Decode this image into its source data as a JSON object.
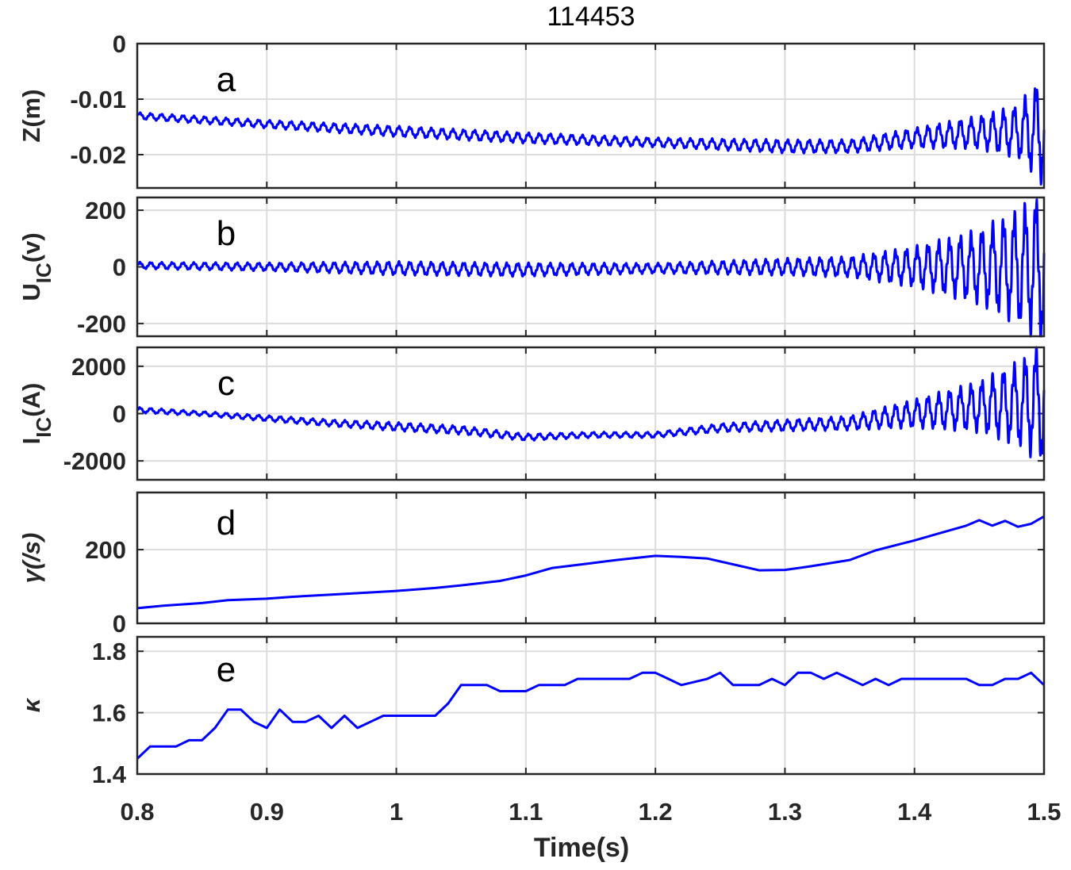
{
  "chart_data": {
    "type": "line",
    "title": "114453",
    "xlabel": "Time(s)",
    "xlim": [
      0.8,
      1.5
    ],
    "xticks": [
      "0.8",
      "0.9",
      "1",
      "1.1",
      "1.2",
      "1.3",
      "1.4",
      "1.5"
    ],
    "xtick_values": [
      0.8,
      0.9,
      1.0,
      1.1,
      1.2,
      1.3,
      1.4,
      1.5
    ],
    "grid": true,
    "line_color": "#0000ff",
    "panels": [
      {
        "letter": "a",
        "ylabel": "Z(m)",
        "ylim": [
          -0.026,
          0
        ],
        "yticks": [
          "0",
          "-0.01",
          "-0.02"
        ],
        "ytick_values": [
          0,
          -0.01,
          -0.02
        ],
        "oscillation_hz": 120,
        "t": [
          0.8,
          0.9,
          1.0,
          1.1,
          1.2,
          1.3,
          1.35,
          1.4,
          1.45,
          1.48,
          1.5
        ],
        "trend": [
          -0.013,
          -0.0145,
          -0.0158,
          -0.017,
          -0.0178,
          -0.0185,
          -0.0185,
          -0.017,
          -0.016,
          -0.0158,
          -0.0155
        ],
        "amplitude": [
          0.0005,
          0.0006,
          0.0008,
          0.0008,
          0.0007,
          0.001,
          0.001,
          0.0015,
          0.0025,
          0.004,
          0.0085
        ]
      },
      {
        "letter": "b",
        "ylabel": "U",
        "ylabel_sub": "IC",
        "ylabel_unit": "(v)",
        "ylim": [
          -245,
          245
        ],
        "yticks": [
          "200",
          "0",
          "-200"
        ],
        "ytick_values": [
          200,
          0,
          -200
        ],
        "oscillation_hz": 120,
        "t": [
          0.8,
          0.9,
          1.0,
          1.1,
          1.2,
          1.3,
          1.35,
          1.4,
          1.45,
          1.48,
          1.5
        ],
        "trend": [
          5,
          0,
          -5,
          -10,
          -5,
          0,
          0,
          0,
          0,
          0,
          0
        ],
        "amplitude": [
          10,
          12,
          20,
          20,
          15,
          25,
          30,
          60,
          110,
          170,
          230
        ]
      },
      {
        "letter": "c",
        "ylabel": "I",
        "ylabel_sub": "IC",
        "ylabel_unit": "(A)",
        "ylim": [
          -2800,
          2800
        ],
        "yticks": [
          "2000",
          "0",
          "-2000"
        ],
        "ytick_values": [
          2000,
          0,
          -2000
        ],
        "oscillation_hz": 120,
        "t": [
          0.8,
          0.85,
          0.9,
          0.95,
          1.0,
          1.05,
          1.1,
          1.15,
          1.2,
          1.25,
          1.3,
          1.35,
          1.4,
          1.45,
          1.48,
          1.5
        ],
        "trend": [
          150,
          0,
          -200,
          -400,
          -550,
          -700,
          -1000,
          -900,
          -900,
          -600,
          -500,
          -400,
          0,
          300,
          400,
          500
        ],
        "amplitude": [
          100,
          80,
          100,
          120,
          150,
          150,
          120,
          100,
          100,
          150,
          200,
          250,
          500,
          900,
          1500,
          2200
        ]
      },
      {
        "letter": "d",
        "ylabel": "γ(/s)",
        "ylim": [
          0,
          355
        ],
        "yticks": [
          "200",
          "0"
        ],
        "ytick_values": [
          200,
          0
        ],
        "t": [
          0.8,
          0.82,
          0.85,
          0.87,
          0.9,
          0.92,
          0.95,
          0.98,
          1.0,
          1.03,
          1.05,
          1.08,
          1.1,
          1.12,
          1.15,
          1.17,
          1.2,
          1.22,
          1.24,
          1.26,
          1.28,
          1.3,
          1.32,
          1.35,
          1.37,
          1.4,
          1.42,
          1.44,
          1.45,
          1.46,
          1.47,
          1.48,
          1.49,
          1.5
        ],
        "values": [
          41,
          48,
          55,
          63,
          67,
          72,
          78,
          84,
          88,
          96,
          103,
          115,
          130,
          150,
          163,
          172,
          183,
          180,
          176,
          160,
          144,
          145,
          155,
          172,
          198,
          225,
          245,
          265,
          280,
          265,
          278,
          262,
          270,
          290
        ]
      },
      {
        "letter": "e",
        "ylabel": "κ",
        "ylim": [
          1.4,
          1.847
        ],
        "yticks": [
          "1.8",
          "1.6",
          "1.4"
        ],
        "ytick_values": [
          1.8,
          1.6,
          1.4
        ],
        "t_start": 0.8,
        "t_step": 0.01,
        "values": [
          1.45,
          1.49,
          1.49,
          1.49,
          1.51,
          1.51,
          1.55,
          1.61,
          1.61,
          1.57,
          1.55,
          1.61,
          1.57,
          1.57,
          1.59,
          1.55,
          1.59,
          1.55,
          1.57,
          1.59,
          1.59,
          1.59,
          1.59,
          1.59,
          1.63,
          1.69,
          1.69,
          1.69,
          1.67,
          1.67,
          1.67,
          1.69,
          1.69,
          1.69,
          1.71,
          1.71,
          1.71,
          1.71,
          1.71,
          1.73,
          1.73,
          1.71,
          1.69,
          1.7,
          1.71,
          1.73,
          1.69,
          1.69,
          1.69,
          1.71,
          1.69,
          1.73,
          1.73,
          1.71,
          1.73,
          1.71,
          1.69,
          1.71,
          1.69,
          1.71,
          1.71,
          1.71,
          1.71,
          1.71,
          1.71,
          1.69,
          1.69,
          1.71,
          1.71,
          1.73,
          1.69,
          1.73
        ]
      }
    ]
  }
}
